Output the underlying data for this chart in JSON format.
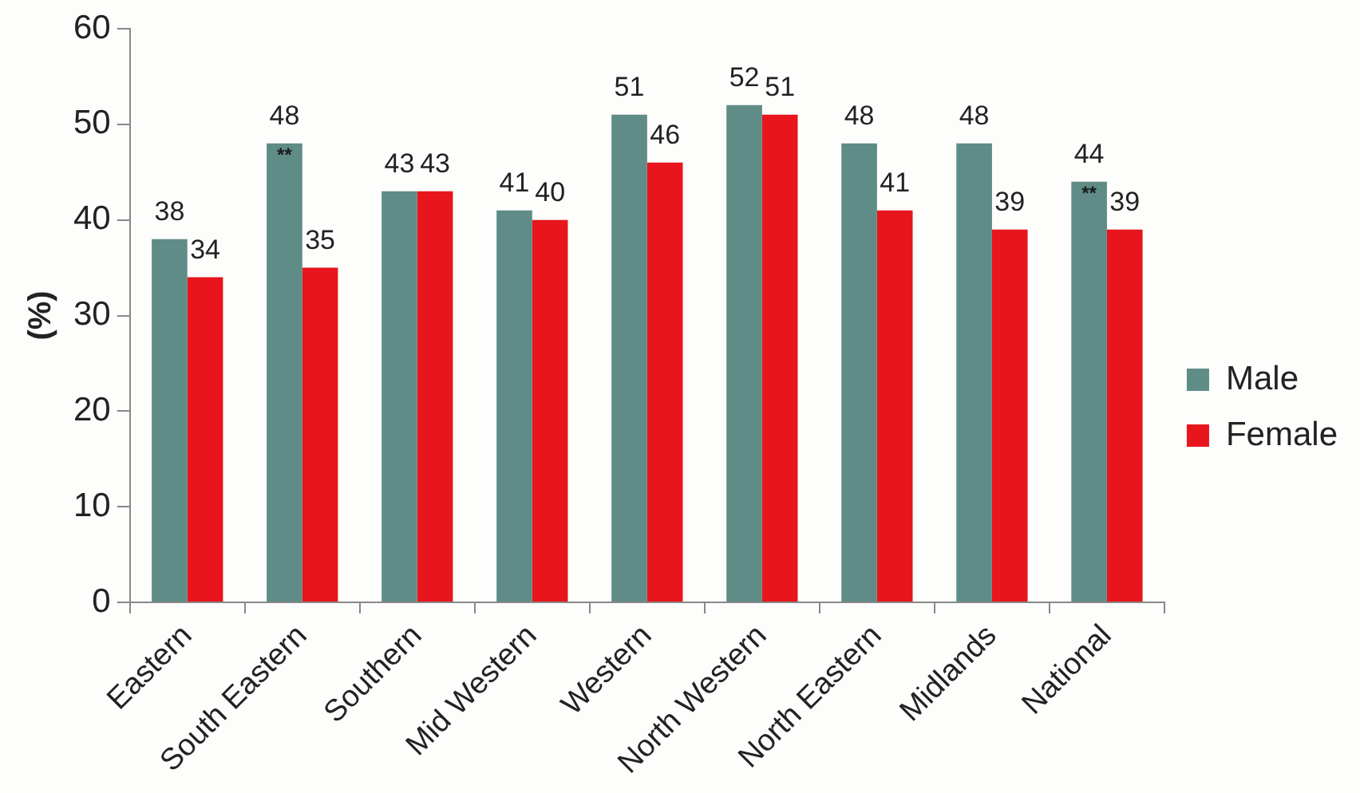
{
  "chart_data": {
    "type": "bar",
    "ylabel": "(%)",
    "categories": [
      "Eastern",
      "South Eastern",
      "Southern",
      "Mid Western",
      "Western",
      "North Western",
      "North Eastern",
      "Midlands",
      "National"
    ],
    "series": [
      {
        "name": "Male",
        "color": "#5f8c87",
        "values": [
          38,
          48,
          43,
          41,
          51,
          52,
          48,
          48,
          44
        ]
      },
      {
        "name": "Female",
        "color": "#e8151c",
        "values": [
          34,
          35,
          43,
          40,
          46,
          51,
          41,
          39,
          39
        ]
      }
    ],
    "ylim": [
      0,
      60
    ],
    "yticks": [
      0,
      10,
      20,
      30,
      40,
      50,
      60
    ],
    "data_labels": true,
    "legend": "right",
    "annotations": [
      {
        "text": "**",
        "x": "South Eastern",
        "y": 47
      },
      {
        "text": "**",
        "x": "National",
        "y": 43
      }
    ]
  }
}
